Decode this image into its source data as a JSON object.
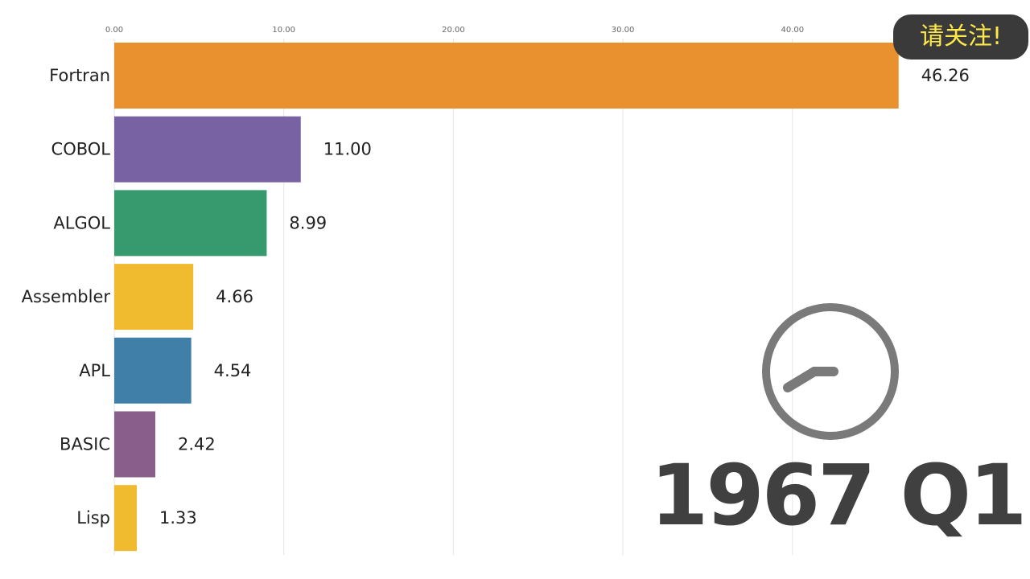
{
  "chart_data": {
    "type": "bar",
    "orientation": "horizontal",
    "categories": [
      "Fortran",
      "COBOL",
      "ALGOL",
      "Assembler",
      "APL",
      "BASIC",
      "Lisp"
    ],
    "values": [
      46.26,
      11.0,
      8.99,
      4.66,
      4.54,
      2.42,
      1.33
    ],
    "value_labels": [
      "46.26",
      "11.00",
      "8.99",
      "4.66",
      "4.54",
      "2.42",
      "1.33"
    ],
    "colors": [
      "#e8912e",
      "#7862a3",
      "#369a6e",
      "#f0bb2e",
      "#3f7fa8",
      "#8a5e8a",
      "#f0bb2e"
    ],
    "xticks": [
      0,
      10,
      20,
      30,
      40
    ],
    "xtick_labels": [
      "0.00",
      "10.00",
      "20.00",
      "30.00",
      "40.00"
    ],
    "xlim": [
      0,
      50
    ],
    "grid": true,
    "title": "",
    "xlabel": "",
    "ylabel": ""
  },
  "overlay": {
    "badge_text": "请关注!",
    "period_label": "1967 Q1",
    "clock_icon": "clock-icon"
  }
}
